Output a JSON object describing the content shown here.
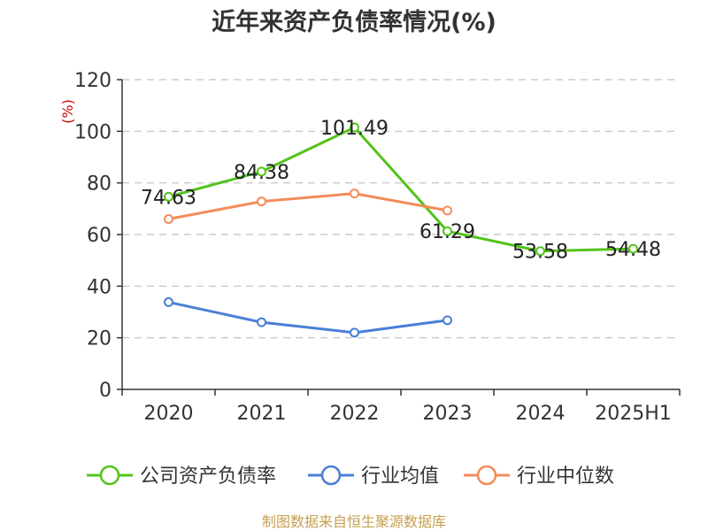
{
  "chart_data": {
    "type": "line",
    "title": "近年来资产负债率情况(%)",
    "y_unit": "(%)",
    "categories": [
      "2020",
      "2021",
      "2022",
      "2023",
      "2024",
      "2025H1"
    ],
    "ylim": [
      0,
      120
    ],
    "y_ticks": [
      0,
      20,
      40,
      60,
      80,
      100,
      120
    ],
    "grid": true,
    "legend_position": "bottom",
    "series": [
      {
        "name": "公司资产负债率",
        "color": "#52c41a",
        "values": [
          74.63,
          84.38,
          101.49,
          61.29,
          53.58,
          54.48
        ],
        "labels": [
          "74.63",
          "84.38",
          "101.49",
          "61.29",
          "53.58",
          "54.48"
        ]
      },
      {
        "name": "行业均值",
        "color": "#4a7fd6",
        "values": [
          33.8,
          26.0,
          22.0,
          26.8,
          null,
          null
        ]
      },
      {
        "name": "行业中位数",
        "color": "#f58b5a",
        "values": [
          66.0,
          72.8,
          75.9,
          69.3,
          null,
          null
        ]
      }
    ]
  },
  "source": "制图数据来自恒生聚源数据库",
  "colors": {
    "axis": "#333333",
    "grid": "#cccccc",
    "unit": "#cc0000",
    "source": "#c8a050"
  }
}
